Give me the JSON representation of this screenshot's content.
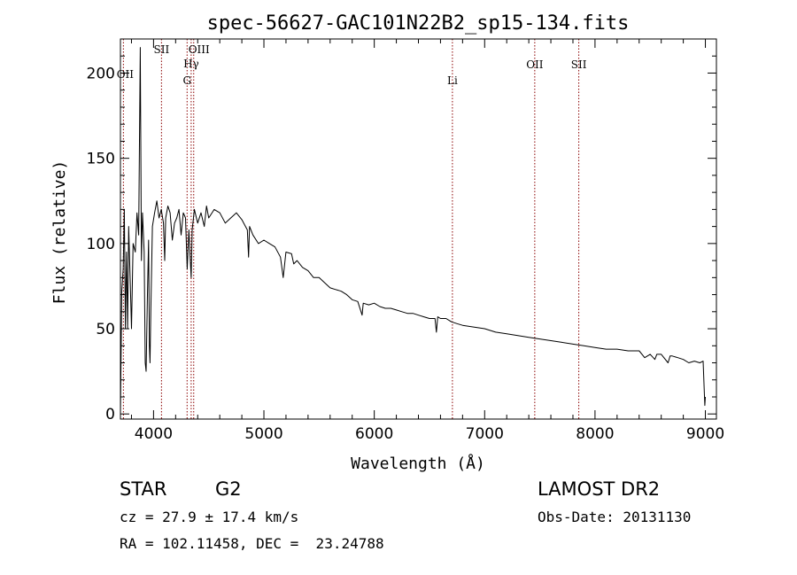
{
  "chart_data": {
    "type": "line",
    "title": "spec-56627-GAC101N22B2_sp15-134.fits",
    "xlabel": "Wavelength (Å)",
    "ylabel": "Flux (relative)",
    "xlim": [
      3700,
      9100
    ],
    "ylim": [
      -3,
      220
    ],
    "xticks": [
      4000,
      5000,
      6000,
      7000,
      8000,
      9000
    ],
    "yticks": [
      0,
      50,
      100,
      150,
      200
    ],
    "grid": false,
    "line_color": "#000000",
    "marker_color": "#8b0000",
    "spectral_lines": [
      {
        "label": "OII",
        "x": 3727
      },
      {
        "label": "SII",
        "x": 4072
      },
      {
        "label": "G",
        "x": 4304
      },
      {
        "label": "Hγ",
        "x": 4341
      },
      {
        "label": "OIII",
        "x": 4364
      },
      {
        "label": "Li",
        "x": 6708
      },
      {
        "label": "OII",
        "x": 7454
      },
      {
        "label": "SII",
        "x": 7853
      }
    ],
    "series": [
      {
        "x": [
          3700,
          3712,
          3725,
          3735,
          3745,
          3755,
          3765,
          3775,
          3790,
          3800,
          3815,
          3835,
          3850,
          3865,
          3880,
          3890,
          3900,
          3915,
          3925,
          3933,
          3945,
          3955,
          3962,
          3968,
          3975,
          3990,
          4010,
          4030,
          4050,
          4070,
          4090,
          4101,
          4110,
          4130,
          4150,
          4170,
          4190,
          4210,
          4230,
          4250,
          4270,
          4290,
          4305,
          4320,
          4335,
          4341,
          4350,
          4370,
          4400,
          4430,
          4460,
          4480,
          4500,
          4550,
          4600,
          4650,
          4700,
          4750,
          4800,
          4850,
          4861,
          4870,
          4900,
          4950,
          5000,
          5050,
          5100,
          5150,
          5175,
          5200,
          5250,
          5270,
          5300,
          5350,
          5400,
          5450,
          5500,
          5550,
          5600,
          5650,
          5700,
          5750,
          5800,
          5850,
          5890,
          5900,
          5950,
          6000,
          6050,
          6100,
          6150,
          6200,
          6250,
          6300,
          6350,
          6400,
          6450,
          6500,
          6550,
          6563,
          6575,
          6600,
          6650,
          6700,
          6750,
          6800,
          6900,
          7000,
          7100,
          7200,
          7300,
          7400,
          7500,
          7600,
          7700,
          7800,
          7900,
          8000,
          8100,
          8200,
          8300,
          8400,
          8450,
          8500,
          8542,
          8560,
          8600,
          8662,
          8680,
          8700,
          8750,
          8800,
          8850,
          8900,
          8950,
          8980,
          8995,
          9000
        ],
        "values": [
          0,
          72,
          85,
          120,
          50,
          95,
          50,
          110,
          75,
          50,
          100,
          95,
          118,
          105,
          215,
          90,
          118,
          95,
          30,
          25,
          70,
          102,
          40,
          30,
          60,
          110,
          118,
          125,
          115,
          120,
          112,
          90,
          115,
          122,
          118,
          102,
          112,
          115,
          120,
          105,
          118,
          115,
          85,
          108,
          88,
          80,
          108,
          120,
          112,
          118,
          110,
          122,
          115,
          120,
          118,
          112,
          115,
          118,
          114,
          108,
          92,
          110,
          105,
          100,
          102,
          100,
          98,
          92,
          80,
          95,
          94,
          88,
          90,
          86,
          84,
          80,
          80,
          77,
          74,
          73,
          72,
          70,
          67,
          66,
          58,
          65,
          64,
          65,
          63,
          62,
          62,
          61,
          60,
          59,
          59,
          58,
          57,
          56,
          56,
          48,
          57,
          56,
          56,
          54,
          53,
          52,
          51,
          50,
          48,
          47,
          46,
          45,
          44,
          43,
          42,
          41,
          40,
          39,
          38,
          38,
          37,
          37,
          33,
          35,
          32,
          35,
          35,
          30,
          34,
          34,
          33,
          32,
          30,
          31,
          30,
          31,
          5,
          10
        ]
      }
    ]
  },
  "info": {
    "class_label": "STAR",
    "subclass": "G2",
    "survey": "LAMOST DR2",
    "cz_text": "cz = 27.9 ± 17.4 km/s",
    "obs_date_text": "Obs-Date: 20131130",
    "coords_text": "RA = 102.11458, DEC =  23.24788"
  }
}
